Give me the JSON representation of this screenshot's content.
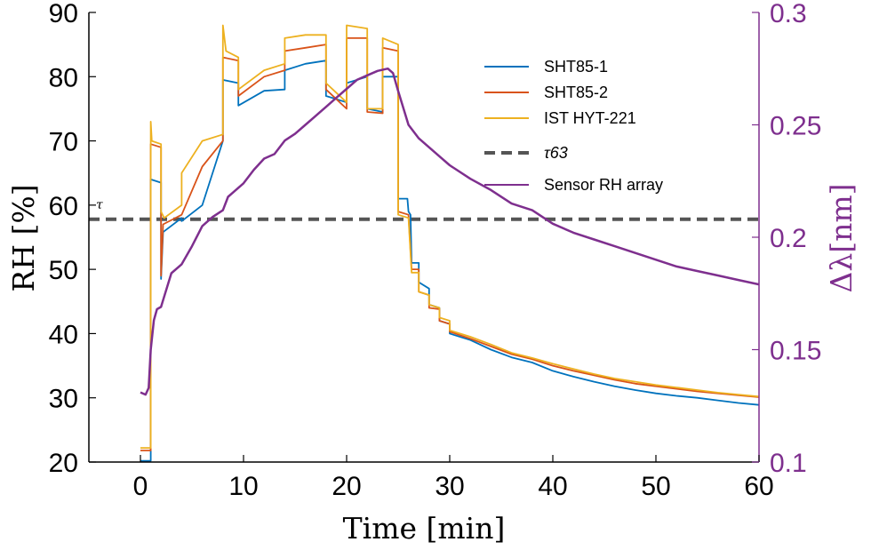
{
  "chart_data": {
    "type": "line",
    "xlabel": "Time [min]",
    "ylabel_left": "RH [%]",
    "ylabel_right": "Δλ[nm]",
    "xlim": [
      -5,
      60
    ],
    "ylim_left": [
      20,
      90
    ],
    "ylim_right": [
      0.1,
      0.3
    ],
    "x_ticks": [
      0,
      10,
      20,
      30,
      40,
      50,
      60
    ],
    "x_tick_labels": [
      "0",
      "10",
      "20",
      "30",
      "40",
      "50",
      "60"
    ],
    "y_left_ticks": [
      20,
      30,
      40,
      50,
      60,
      70,
      80,
      90
    ],
    "y_left_tick_labels": [
      "20",
      "30",
      "40",
      "50",
      "60",
      "70",
      "80",
      "90"
    ],
    "y_right_ticks": [
      0.1,
      0.15,
      0.2,
      0.25,
      0.3
    ],
    "y_right_tick_labels": [
      "0.1",
      "0.15",
      "0.2",
      "0.25",
      "0.3"
    ],
    "grid": false,
    "legend_position": "top-right",
    "tau_line": {
      "name": "τ63",
      "value": 57.8,
      "side_label": "τ",
      "color": "#555555"
    },
    "series": [
      {
        "name": "SHT85-1",
        "axis": "left",
        "color": "#0072bd",
        "points": [
          [
            0,
            20.2
          ],
          [
            1,
            20.2
          ],
          [
            1,
            64
          ],
          [
            2,
            63.5
          ],
          [
            2,
            48.5
          ],
          [
            2.2,
            55.8
          ],
          [
            4,
            58
          ],
          [
            4,
            57.5
          ],
          [
            6,
            60
          ],
          [
            8,
            70
          ],
          [
            8,
            79.5
          ],
          [
            9.5,
            79
          ],
          [
            9.5,
            75.5
          ],
          [
            12,
            77.8
          ],
          [
            14,
            78
          ],
          [
            14,
            81
          ],
          [
            16,
            82
          ],
          [
            18,
            82.5
          ],
          [
            18,
            77
          ],
          [
            20,
            76
          ],
          [
            20,
            79
          ],
          [
            22,
            80
          ],
          [
            22,
            75
          ],
          [
            23.5,
            74.5
          ],
          [
            23.5,
            80
          ],
          [
            25,
            80
          ],
          [
            25,
            61
          ],
          [
            25.9,
            61
          ],
          [
            26,
            59
          ],
          [
            26.2,
            58.5
          ],
          [
            26.3,
            51
          ],
          [
            27,
            51
          ],
          [
            27,
            48
          ],
          [
            28,
            47
          ],
          [
            28,
            44.5
          ],
          [
            29,
            44
          ],
          [
            29,
            42
          ],
          [
            30,
            41.5
          ],
          [
            30,
            40
          ],
          [
            32,
            39
          ],
          [
            34,
            37.5
          ],
          [
            36,
            36.3
          ],
          [
            38,
            35.5
          ],
          [
            40,
            34.2
          ],
          [
            42,
            33.3
          ],
          [
            44,
            32.5
          ],
          [
            46,
            31.8
          ],
          [
            48,
            31.2
          ],
          [
            50,
            30.7
          ],
          [
            52,
            30.3
          ],
          [
            54,
            30
          ],
          [
            56,
            29.6
          ],
          [
            58,
            29.2
          ],
          [
            60,
            28.9
          ]
        ]
      },
      {
        "name": "SHT85-2",
        "axis": "left",
        "color": "#d95319",
        "points": [
          [
            0,
            21.8
          ],
          [
            1,
            21.8
          ],
          [
            1,
            69.5
          ],
          [
            2,
            69
          ],
          [
            2,
            49
          ],
          [
            2.2,
            57
          ],
          [
            4,
            58.5
          ],
          [
            6,
            66
          ],
          [
            8,
            70
          ],
          [
            8,
            83
          ],
          [
            9.5,
            82.5
          ],
          [
            9.5,
            77
          ],
          [
            12,
            80
          ],
          [
            14,
            81
          ],
          [
            14,
            84
          ],
          [
            16,
            84.5
          ],
          [
            18,
            85
          ],
          [
            18,
            78
          ],
          [
            20,
            75
          ],
          [
            20,
            86
          ],
          [
            22,
            86
          ],
          [
            22,
            74.5
          ],
          [
            23.5,
            74.3
          ],
          [
            23.5,
            84.5
          ],
          [
            25,
            84
          ],
          [
            25,
            59
          ],
          [
            26,
            58.5
          ],
          [
            26.3,
            50
          ],
          [
            27,
            50
          ],
          [
            27,
            46.5
          ],
          [
            28,
            46
          ],
          [
            28,
            44
          ],
          [
            29,
            43.8
          ],
          [
            29,
            42
          ],
          [
            30,
            41.5
          ],
          [
            30,
            40.3
          ],
          [
            32,
            39.2
          ],
          [
            34,
            38
          ],
          [
            36,
            36.8
          ],
          [
            38,
            36
          ],
          [
            40,
            35
          ],
          [
            42,
            34.2
          ],
          [
            44,
            33.5
          ],
          [
            46,
            32.8
          ],
          [
            48,
            32.2
          ],
          [
            50,
            31.8
          ],
          [
            52,
            31.4
          ],
          [
            54,
            31
          ],
          [
            56,
            30.7
          ],
          [
            58,
            30.4
          ],
          [
            60,
            30.1
          ]
        ]
      },
      {
        "name": "IST HYT-221",
        "axis": "left",
        "color": "#edb120",
        "points": [
          [
            0,
            22.2
          ],
          [
            1,
            22.2
          ],
          [
            1,
            73
          ],
          [
            1.1,
            70
          ],
          [
            2,
            69.5
          ],
          [
            2,
            59
          ],
          [
            2.3,
            58
          ],
          [
            4,
            60
          ],
          [
            4,
            65
          ],
          [
            6,
            70
          ],
          [
            8,
            71
          ],
          [
            8,
            88
          ],
          [
            8.3,
            84
          ],
          [
            9.5,
            83
          ],
          [
            9.5,
            78
          ],
          [
            12,
            81
          ],
          [
            14,
            82
          ],
          [
            14,
            86
          ],
          [
            16,
            86.5
          ],
          [
            18,
            86.5
          ],
          [
            18,
            79
          ],
          [
            20,
            76
          ],
          [
            20,
            88
          ],
          [
            22,
            87.5
          ],
          [
            22,
            75
          ],
          [
            23.5,
            75
          ],
          [
            23.5,
            86
          ],
          [
            25,
            85
          ],
          [
            25,
            58.5
          ],
          [
            26,
            58
          ],
          [
            26.3,
            49.5
          ],
          [
            27,
            49.5
          ],
          [
            27,
            46.5
          ],
          [
            28,
            46
          ],
          [
            28,
            44.5
          ],
          [
            29,
            44
          ],
          [
            29,
            42.5
          ],
          [
            30,
            42
          ],
          [
            30,
            40.5
          ],
          [
            32,
            39.5
          ],
          [
            34,
            38.3
          ],
          [
            36,
            37
          ],
          [
            38,
            36.2
          ],
          [
            40,
            35.3
          ],
          [
            42,
            34.5
          ],
          [
            44,
            33.7
          ],
          [
            46,
            33
          ],
          [
            48,
            32.5
          ],
          [
            50,
            32
          ],
          [
            52,
            31.6
          ],
          [
            54,
            31.2
          ],
          [
            56,
            30.8
          ],
          [
            58,
            30.5
          ],
          [
            60,
            30.2
          ]
        ]
      },
      {
        "name": "Sensor RH array",
        "axis": "right",
        "color": "#7e2f8e",
        "points": [
          [
            0,
            0.131
          ],
          [
            0.5,
            0.13
          ],
          [
            0.8,
            0.133
          ],
          [
            1,
            0.15
          ],
          [
            1.3,
            0.163
          ],
          [
            1.6,
            0.168
          ],
          [
            2,
            0.169
          ],
          [
            2.2,
            0.172
          ],
          [
            3,
            0.184
          ],
          [
            4,
            0.188
          ],
          [
            5,
            0.196
          ],
          [
            6,
            0.205
          ],
          [
            7,
            0.209
          ],
          [
            8,
            0.212
          ],
          [
            8.5,
            0.218
          ],
          [
            9,
            0.22
          ],
          [
            10,
            0.224
          ],
          [
            11,
            0.23
          ],
          [
            12,
            0.235
          ],
          [
            13,
            0.237
          ],
          [
            14,
            0.243
          ],
          [
            15,
            0.246
          ],
          [
            16,
            0.25
          ],
          [
            17,
            0.254
          ],
          [
            18,
            0.258
          ],
          [
            19,
            0.262
          ],
          [
            20,
            0.266
          ],
          [
            21,
            0.27
          ],
          [
            22,
            0.272
          ],
          [
            23,
            0.274
          ],
          [
            24,
            0.275
          ],
          [
            24.5,
            0.273
          ],
          [
            25,
            0.265
          ],
          [
            26,
            0.25
          ],
          [
            27,
            0.244
          ],
          [
            28,
            0.24
          ],
          [
            29,
            0.236
          ],
          [
            30,
            0.232
          ],
          [
            32,
            0.226
          ],
          [
            34,
            0.221
          ],
          [
            36,
            0.215
          ],
          [
            38,
            0.212
          ],
          [
            40,
            0.206
          ],
          [
            42,
            0.202
          ],
          [
            44,
            0.199
          ],
          [
            46,
            0.196
          ],
          [
            48,
            0.193
          ],
          [
            50,
            0.19
          ],
          [
            52,
            0.187
          ],
          [
            54,
            0.185
          ],
          [
            56,
            0.183
          ],
          [
            58,
            0.181
          ],
          [
            60,
            0.179
          ]
        ]
      }
    ]
  }
}
